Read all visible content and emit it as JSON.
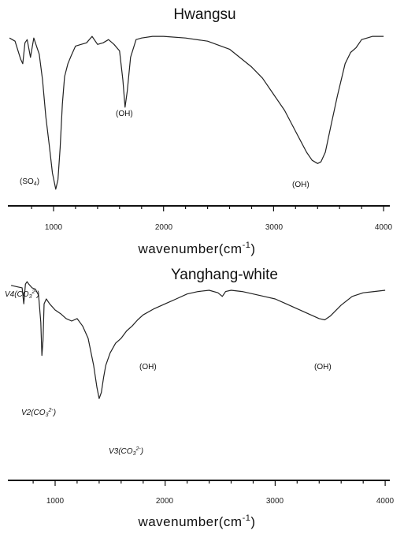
{
  "chart_data": [
    {
      "type": "line",
      "title": "Hwangsu",
      "xlabel": "wavenumber(cm⁻¹)",
      "xlim": [
        600,
        4000
      ],
      "xticks": [
        1000,
        2000,
        3000,
        4000
      ],
      "y_axis_shown": false,
      "series": [
        {
          "x": [
            600,
            650,
            700,
            720,
            740,
            760,
            790,
            820,
            850,
            870,
            900,
            930,
            960,
            990,
            1020,
            1040,
            1060,
            1080,
            1100,
            1130,
            1160,
            1200,
            1250,
            1300,
            1350,
            1400,
            1450,
            1500,
            1550,
            1600,
            1630,
            1650,
            1670,
            1700,
            1750,
            1800,
            1900,
            2000,
            2200,
            2400,
            2600,
            2800,
            2900,
            3000,
            3100,
            3200,
            3300,
            3350,
            3400,
            3430,
            3470,
            3520,
            3580,
            3650,
            3700,
            3750,
            3800,
            3850,
            3900,
            4000
          ],
          "y": [
            96,
            94,
            83,
            80,
            93,
            95,
            84,
            96,
            90,
            86,
            70,
            47,
            30,
            12,
            2,
            8,
            28,
            55,
            72,
            80,
            85,
            91,
            92,
            93,
            97,
            92,
            93,
            95,
            92,
            88,
            70,
            53,
            63,
            84,
            95,
            96,
            97,
            97,
            96,
            94,
            89,
            78,
            71,
            61,
            51,
            38,
            25,
            20,
            18,
            19,
            25,
            41,
            60,
            80,
            87,
            90,
            95,
            96,
            97,
            97
          ]
        }
      ],
      "annotations": [
        "(SO₄)",
        "(OH)",
        "(OH)"
      ]
    },
    {
      "type": "line",
      "title": "Yanghang-white",
      "xlabel": "wavenumber(cm⁻¹)",
      "xlim": [
        600,
        4000
      ],
      "xticks": [
        1000,
        2000,
        3000,
        4000
      ],
      "y_axis_shown": false,
      "series": [
        {
          "x": [
            600,
            650,
            700,
            715,
            730,
            745,
            760,
            790,
            820,
            850,
            870,
            880,
            890,
            900,
            920,
            950,
            1000,
            1050,
            1100,
            1150,
            1200,
            1250,
            1300,
            1350,
            1380,
            1400,
            1420,
            1440,
            1460,
            1500,
            1550,
            1600,
            1650,
            1700,
            1750,
            1800,
            1900,
            2000,
            2100,
            2200,
            2300,
            2400,
            2480,
            2520,
            2550,
            2600,
            2700,
            2800,
            2900,
            3000,
            3100,
            3200,
            3300,
            3400,
            3450,
            3500,
            3600,
            3700,
            3800,
            3900,
            4000
          ],
          "y": [
            95,
            94,
            93,
            80,
            96,
            98,
            96,
            93,
            92,
            87,
            65,
            38,
            50,
            80,
            84,
            80,
            75,
            72,
            68,
            66,
            68,
            62,
            52,
            30,
            12,
            3,
            8,
            20,
            30,
            40,
            48,
            52,
            58,
            62,
            67,
            71,
            76,
            80,
            84,
            88,
            90,
            91,
            89,
            86,
            90,
            91,
            90,
            88,
            86,
            84,
            80,
            76,
            72,
            68,
            67,
            70,
            79,
            86,
            89,
            90,
            91
          ]
        }
      ],
      "annotations": [
        "V4(CO₃²⁻)",
        "V2(CO₃²⁻)",
        "V3(CO₃²⁻)",
        "(OH)",
        "(OH)"
      ]
    }
  ],
  "panels": [
    {
      "title": "Hwangsu",
      "xlabel_main": "wavenumber(cm",
      "xlabel_sup": "-1",
      "xlabel_close": ")",
      "tick_labels": [
        "1000",
        "2000",
        "3000",
        "4000"
      ],
      "annotations": {
        "so4_prefix": "(SO",
        "so4_sub": "4",
        "so4_suffix": ")",
        "oh_left": "(OH)",
        "oh_right": "(OH)"
      }
    },
    {
      "title": "Yanghang-white",
      "xlabel_main": "wavenumber(cm",
      "xlabel_sup": "-1",
      "xlabel_close": ")",
      "tick_labels": [
        "1000",
        "2000",
        "3000",
        "4000"
      ],
      "annotations": {
        "v4": {
          "prefix": "V4(CO",
          "sub": "3",
          "sup": "2-",
          "suffix": ")"
        },
        "v2": {
          "prefix": "V2(CO",
          "sub": "3",
          "sup": "2-",
          "suffix": ")"
        },
        "v3": {
          "prefix": "V3(CO",
          "sub": "3",
          "sup": "2-",
          "suffix": ")"
        },
        "oh_left": "(OH)",
        "oh_right": "(OH)"
      }
    }
  ]
}
